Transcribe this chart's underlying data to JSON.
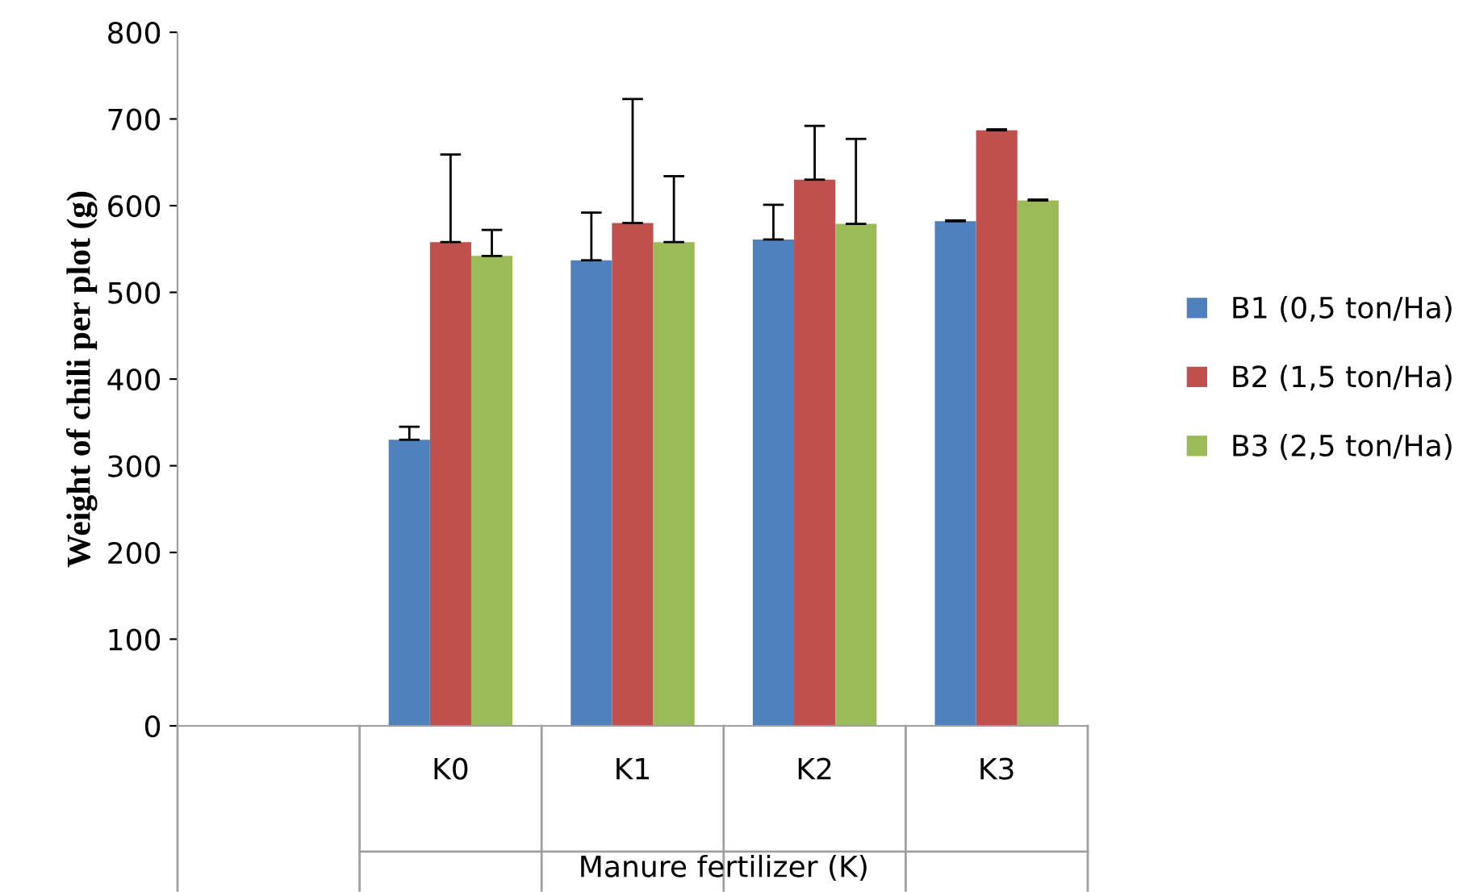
{
  "chart_data": {
    "type": "bar",
    "ylabel": "Weight of chili per plot (g)",
    "xlabel": "Manure fertilizer (K)",
    "categories": [
      null,
      "K0",
      "K1",
      "K2",
      "K3"
    ],
    "series": [
      {
        "name": "B1 (0,5 ton/Ha)",
        "color": "#4f81bd",
        "values": [
          null,
          330,
          537,
          561,
          582
        ],
        "errors": [
          null,
          [
            330,
            345
          ],
          [
            537,
            592
          ],
          [
            561,
            601
          ],
          [
            582,
            583
          ]
        ]
      },
      {
        "name": "B2 (1,5 ton/Ha)",
        "color": "#c0504d",
        "values": [
          null,
          558,
          580,
          630,
          687
        ],
        "errors": [
          null,
          [
            558,
            659
          ],
          [
            580,
            723
          ],
          [
            630,
            692
          ],
          [
            687,
            688
          ]
        ]
      },
      {
        "name": "B3 (2,5 ton/Ha)",
        "color": "#9bbb59",
        "values": [
          null,
          542,
          558,
          579,
          606
        ],
        "errors": [
          null,
          [
            542,
            572
          ],
          [
            558,
            634
          ],
          [
            579,
            677
          ],
          [
            606,
            607
          ]
        ]
      }
    ],
    "ylim": [
      0,
      800
    ],
    "yticks": [
      0,
      100,
      200,
      300,
      400,
      500,
      600,
      700,
      800
    ],
    "grid": false,
    "legend": "right"
  }
}
